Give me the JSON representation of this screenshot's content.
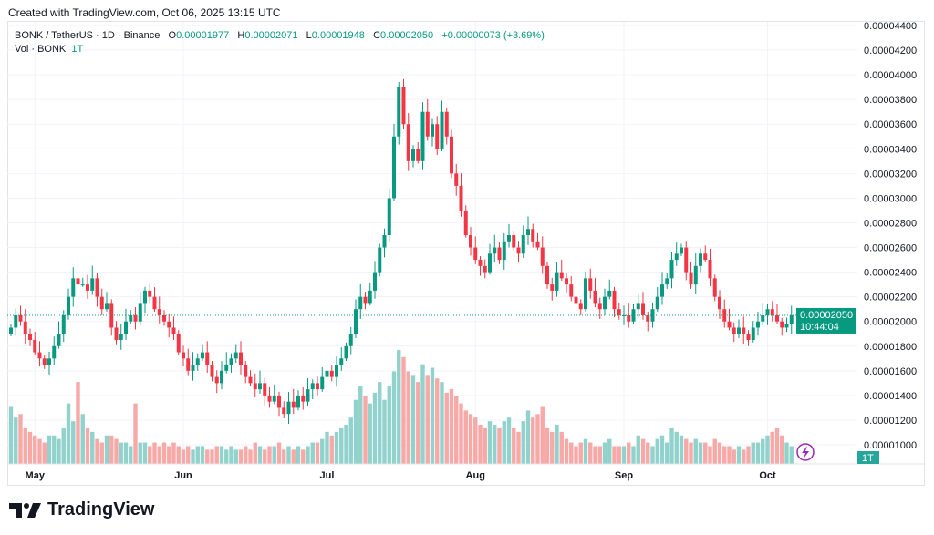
{
  "created": "Created with TradingView.com, Oct 06, 2025 13:15 UTC",
  "legend": {
    "symbol": "BONK / TetherUS · 1D · Binance",
    "o_label": "O",
    "o": "0.00001977",
    "h_label": "H",
    "h": "0.00002071",
    "l_label": "L",
    "l": "0.00001948",
    "c_label": "C",
    "c": "0.00002050",
    "change": "+0.00000073 (+3.69%)",
    "vol_label": "Vol · BONK",
    "vol": "1T"
  },
  "last_price": {
    "price": "0.00002050",
    "countdown": "10:44:04",
    "vol_badge": "1T"
  },
  "brand": "TradingView",
  "colors": {
    "up": "#089981",
    "down": "#f23645",
    "vol_up": "#92d2cc",
    "vol_down": "#f7a9a7",
    "badge": "#089981"
  },
  "chart_data": {
    "type": "candlestick",
    "title": "BONK / TetherUS · 1D · Binance",
    "unit_note": "prices in 1e-8 USDT",
    "start_date": "2025-04-26",
    "ylim": [
      900,
      4450
    ],
    "y_ticks": [
      "0.00001000",
      "0.00001200",
      "0.00001400",
      "0.00001600",
      "0.00001800",
      "0.00002000",
      "0.00002200",
      "0.00002400",
      "0.00002600",
      "0.00002800",
      "0.00003000",
      "0.00003200",
      "0.00003400",
      "0.00003600",
      "0.00003800",
      "0.00004000",
      "0.00004200",
      "0.00004400"
    ],
    "x_ticks": [
      {
        "label": "May",
        "day": 5
      },
      {
        "label": "Jun",
        "day": 36
      },
      {
        "label": "Jul",
        "day": 66
      },
      {
        "label": "Aug",
        "day": 97
      },
      {
        "label": "Sep",
        "day": 128
      },
      {
        "label": "Oct",
        "day": 158
      }
    ],
    "close": [
      1950,
      2050,
      2000,
      1900,
      1850,
      1750,
      1700,
      1650,
      1700,
      1800,
      1900,
      2050,
      2200,
      2350,
      2300,
      2300,
      2250,
      2350,
      2200,
      2100,
      2150,
      1950,
      1850,
      1900,
      2000,
      2050,
      2000,
      2150,
      2250,
      2200,
      2100,
      2050,
      2000,
      1950,
      1900,
      1750,
      1700,
      1600,
      1650,
      1700,
      1750,
      1650,
      1550,
      1500,
      1600,
      1650,
      1700,
      1750,
      1650,
      1550,
      1500,
      1450,
      1500,
      1400,
      1350,
      1400,
      1300,
      1250,
      1350,
      1300,
      1400,
      1350,
      1450,
      1500,
      1450,
      1550,
      1600,
      1550,
      1650,
      1700,
      1800,
      1900,
      2100,
      2200,
      2150,
      2250,
      2400,
      2600,
      2700,
      3000,
      3500,
      3900,
      3600,
      3300,
      3400,
      3300,
      3700,
      3500,
      3600,
      3400,
      3700,
      3500,
      3200,
      3100,
      2900,
      2700,
      2600,
      2500,
      2450,
      2400,
      2550,
      2600,
      2500,
      2650,
      2700,
      2600,
      2550,
      2700,
      2750,
      2650,
      2600,
      2450,
      2300,
      2250,
      2400,
      2350,
      2300,
      2200,
      2150,
      2100,
      2350,
      2250,
      2150,
      2100,
      2200,
      2250,
      2100,
      2050,
      2050,
      2000,
      2100,
      2150,
      2050,
      2000,
      2100,
      2200,
      2300,
      2350,
      2500,
      2550,
      2600,
      2400,
      2300,
      2450,
      2550,
      2500,
      2350,
      2200,
      2100,
      2000,
      1950,
      1900,
      1950,
      1900,
      1850,
      1950,
      2000,
      2050,
      2100,
      2050,
      2000,
      1950,
      1977,
      2050
    ],
    "volume_T": [
      1.6,
      1.3,
      1.4,
      1.0,
      0.9,
      0.8,
      0.7,
      0.6,
      0.8,
      0.8,
      0.7,
      1.0,
      1.7,
      1.2,
      2.3,
      1.4,
      1.0,
      0.9,
      0.7,
      0.6,
      0.8,
      0.8,
      0.7,
      0.6,
      0.6,
      0.5,
      1.7,
      0.6,
      0.6,
      0.5,
      0.6,
      0.5,
      0.6,
      0.5,
      0.6,
      0.5,
      0.4,
      0.5,
      0.4,
      0.5,
      0.5,
      0.4,
      0.4,
      0.5,
      0.5,
      0.4,
      0.5,
      0.4,
      0.4,
      0.5,
      0.4,
      0.6,
      0.5,
      0.4,
      0.5,
      0.5,
      0.6,
      0.4,
      0.5,
      0.4,
      0.5,
      0.4,
      0.5,
      0.6,
      0.6,
      0.7,
      0.9,
      0.8,
      0.9,
      1.0,
      1.1,
      1.3,
      1.8,
      2.2,
      1.9,
      1.7,
      2.0,
      2.3,
      1.8,
      2.2,
      2.6,
      3.2,
      3.0,
      2.6,
      2.5,
      2.3,
      2.8,
      2.5,
      2.7,
      2.4,
      2.3,
      2.0,
      2.1,
      1.9,
      1.7,
      1.5,
      1.4,
      1.3,
      1.1,
      1.0,
      1.2,
      1.1,
      1.0,
      1.2,
      1.3,
      1.0,
      0.9,
      1.2,
      1.5,
      1.3,
      1.4,
      1.6,
      1.0,
      0.9,
      1.1,
      0.9,
      0.7,
      0.6,
      0.5,
      0.6,
      0.7,
      0.6,
      0.5,
      0.5,
      0.6,
      0.7,
      0.5,
      0.5,
      0.5,
      0.6,
      0.5,
      0.8,
      0.7,
      0.6,
      0.5,
      0.7,
      0.8,
      0.6,
      1.0,
      0.9,
      0.8,
      0.7,
      0.6,
      0.7,
      0.6,
      0.6,
      0.5,
      0.7,
      0.6,
      0.5,
      0.5,
      0.4,
      0.5,
      0.4,
      0.5,
      0.6,
      0.6,
      0.7,
      0.8,
      0.9,
      1.0,
      0.8,
      0.6,
      0.5
    ]
  }
}
